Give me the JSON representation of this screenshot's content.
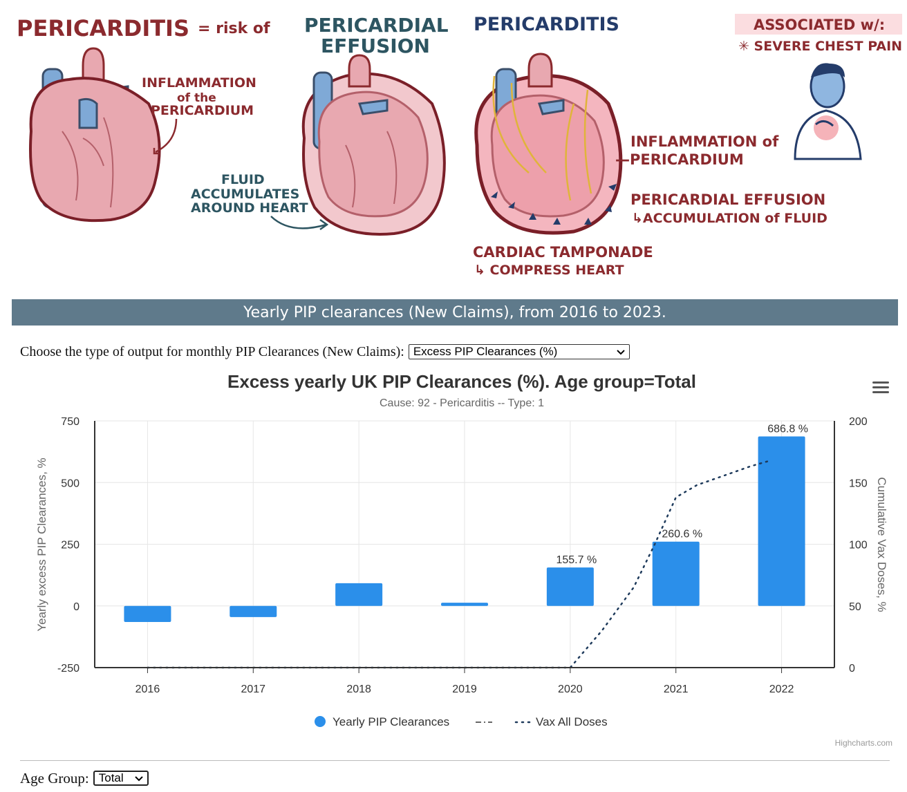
{
  "illustration": {
    "panel1_title": "PERICARDITIS",
    "panel1_subtitle": "= risk of",
    "panel1_label_line1": "INFLAMMATION",
    "panel1_label_line2": "of the",
    "panel1_label_line3": "PERICARDIUM",
    "panel2_title_line1": "PERICARDIAL",
    "panel2_title_line2": "EFFUSION",
    "panel2_label_line1": "FLUID",
    "panel2_label_line2": "ACCUMULATES",
    "panel2_label_line3": "AROUND HEART",
    "panel3_title": "PERICARDITIS",
    "panel3_label1_line1": "INFLAMMATION of",
    "panel3_label1_line2": "—PERICARDIUM",
    "panel3_label2_line1": "PERICARDIAL EFFUSION",
    "panel3_label2_line2": "↳ACCUMULATION of FLUID",
    "panel3_label3_line1": "CARDIAC TAMPONADE",
    "panel3_label3_line2": "↳ COMPRESS HEART",
    "panel4_title": "ASSOCIATED w/:",
    "panel4_label": "✳ SEVERE CHEST PAIN",
    "colors": {
      "maroon": "#8b2a2e",
      "teal": "#2d5561",
      "navy": "#243c6a",
      "heart": "#e8a8b0",
      "vessel": "#7fa9d6"
    }
  },
  "banner": {
    "title": "Yearly PIP clearances (New Claims), from 2016 to 2023."
  },
  "controls": {
    "output_label": "Choose the type of output for monthly PIP Clearances (New Claims):",
    "output_value": "Excess PIP Clearances (%)",
    "age_label": "Age Group:",
    "age_value": "Total"
  },
  "chart_data": {
    "type": "bar",
    "title": "Excess yearly UK PIP Clearances (%). Age group=Total",
    "subtitle": "Cause: 92 - Pericarditis -- Type: 1",
    "categories": [
      "2016",
      "2017",
      "2018",
      "2019",
      "2020",
      "2021",
      "2022"
    ],
    "series": [
      {
        "name": "Yearly PIP Clearances",
        "type": "bar",
        "axis": "left",
        "color": "#2b8fea",
        "values": [
          -65,
          -45,
          92,
          13,
          155.7,
          260.6,
          686.8
        ],
        "data_labels": [
          null,
          null,
          null,
          null,
          "155.7 %",
          "260.6 %",
          "686.8 %"
        ]
      },
      {
        "name": "Vax All Doses",
        "type": "line",
        "style": "dotted",
        "axis": "right",
        "color": "#1f3b5c",
        "x": [
          2016,
          2017,
          2018,
          2019,
          2020,
          2020.3,
          2020.6,
          2020.8,
          2021,
          2021.2,
          2021.5,
          2021.7,
          2021.9
        ],
        "values": [
          0,
          0,
          0,
          0,
          0,
          30,
          65,
          100,
          138,
          148,
          157,
          163,
          168
        ]
      }
    ],
    "extra_legend": {
      "name": "",
      "style": "dash-dot",
      "color": "#666666"
    },
    "ylabel": "Yearly excess PIP Clearances, %",
    "y2label": "Cumulative Vax Doses, %",
    "ylim": [
      -250,
      750
    ],
    "y2lim": [
      0,
      200
    ],
    "yticks": [
      -250,
      0,
      250,
      500,
      750
    ],
    "y2ticks": [
      0,
      50,
      100,
      150,
      200
    ],
    "grid": true,
    "legend_position": "bottom-center",
    "credits": "Highcharts.com"
  }
}
